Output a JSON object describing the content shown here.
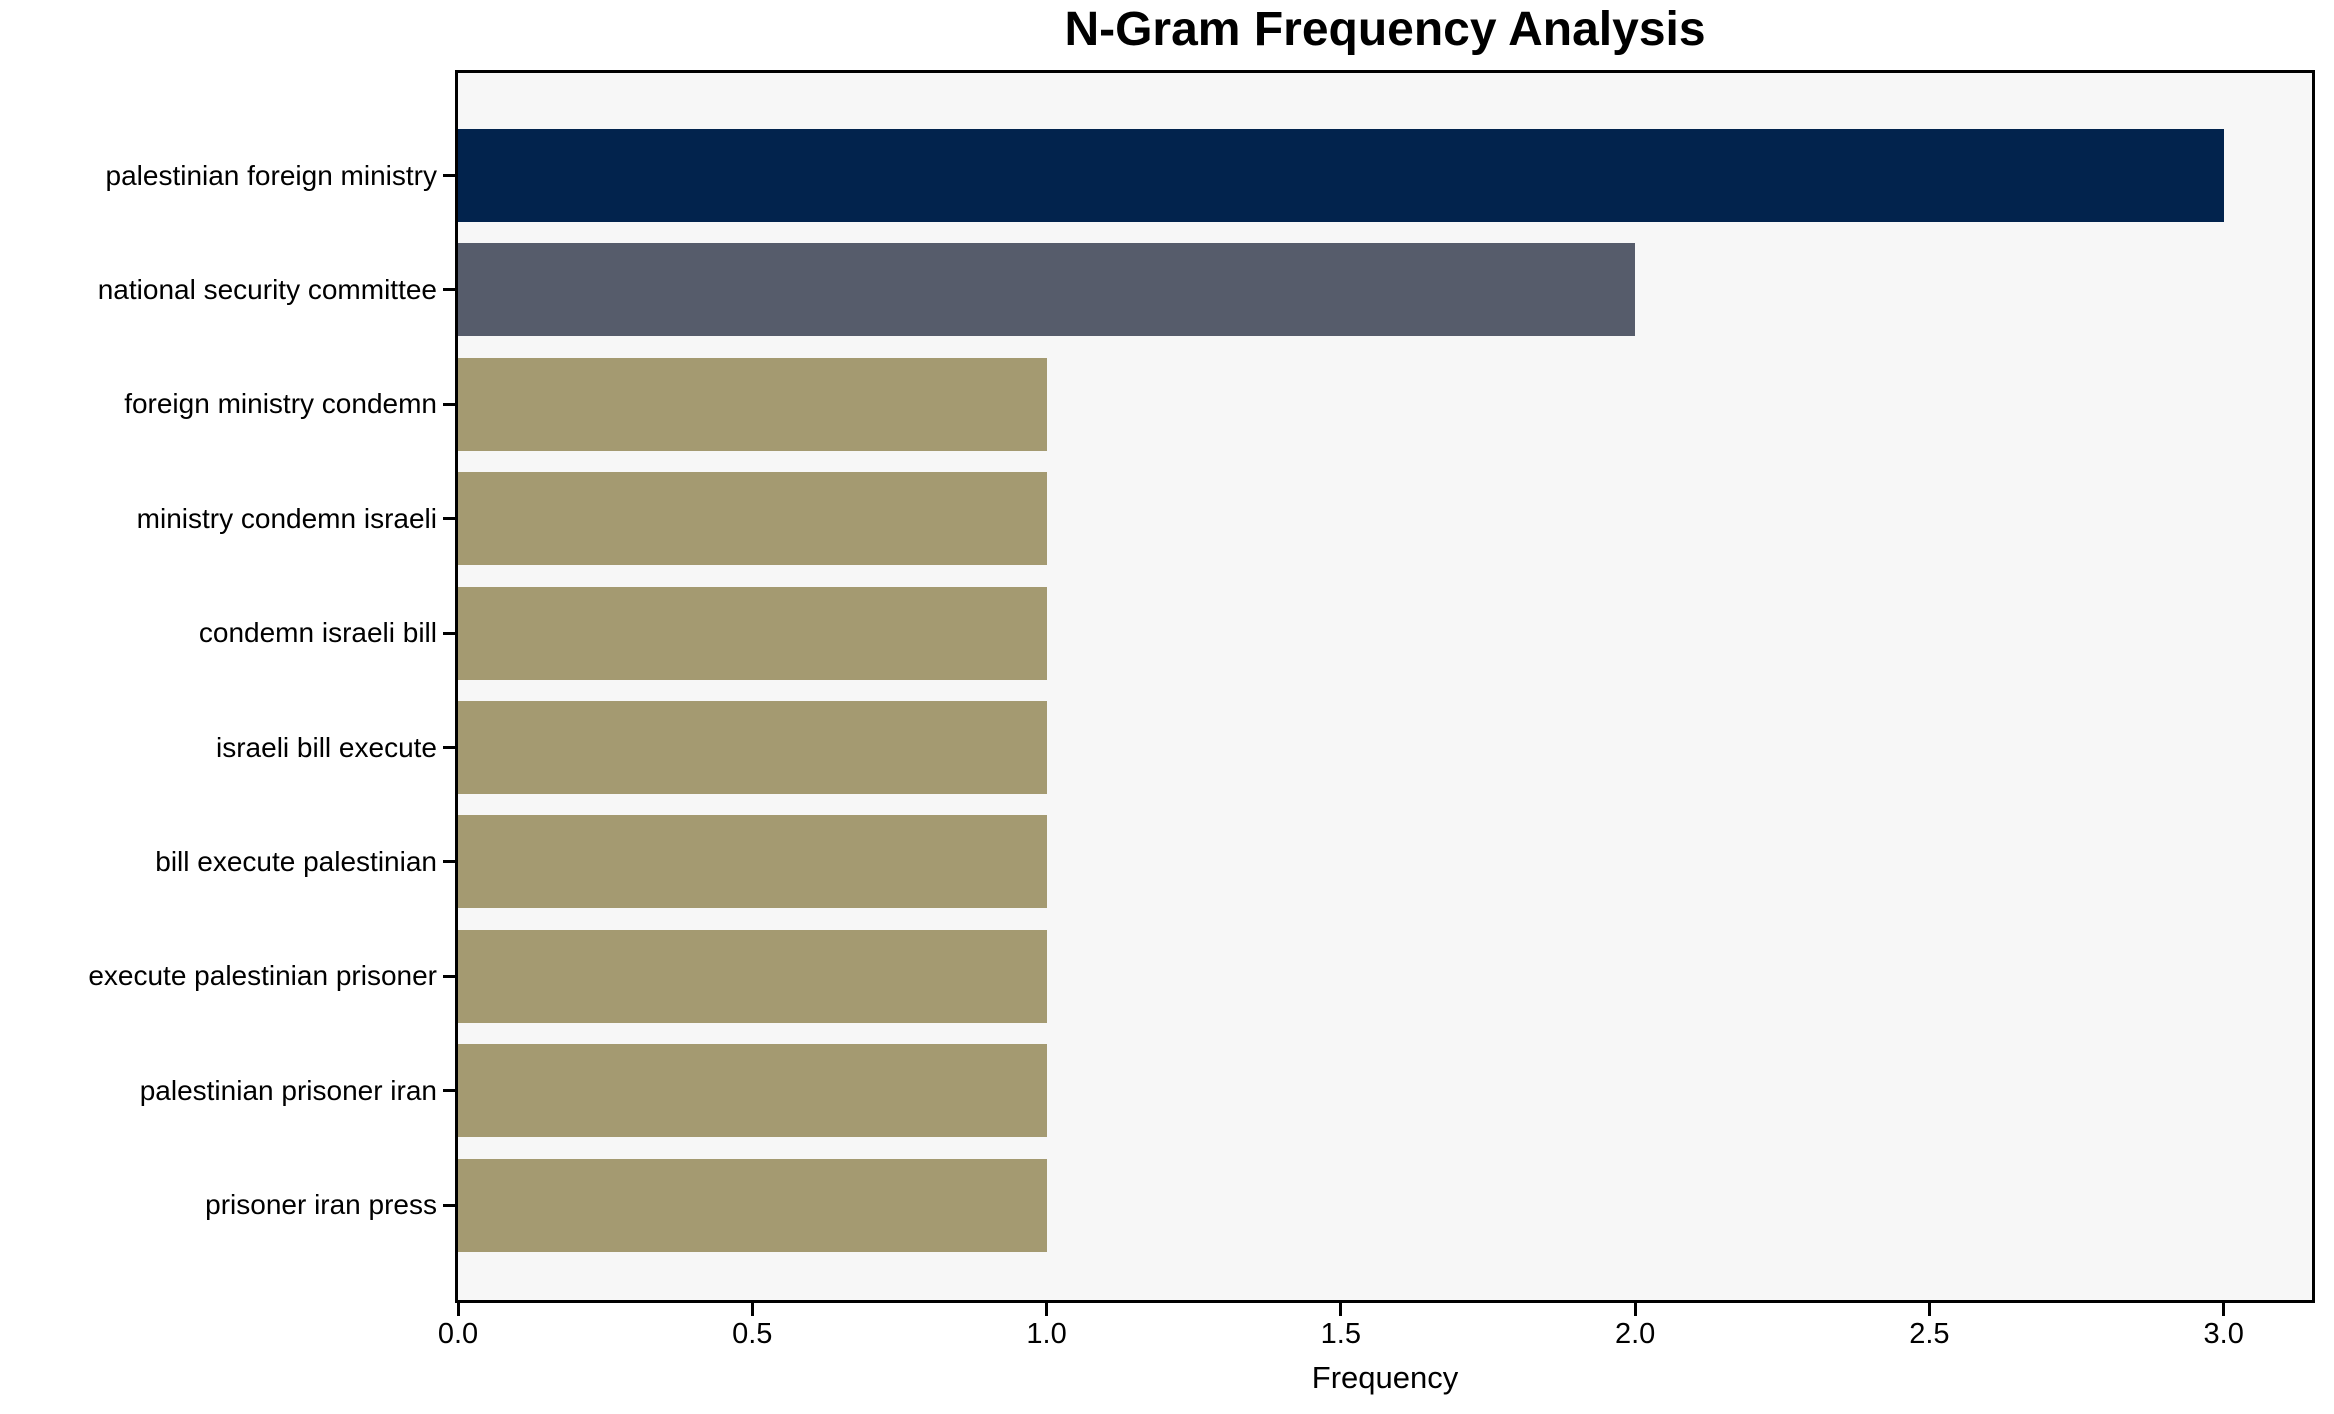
{
  "chart_data": {
    "type": "bar",
    "orientation": "horizontal",
    "title": "N-Gram Frequency Analysis",
    "xlabel": "Frequency",
    "ylabel": "",
    "categories": [
      "palestinian foreign ministry",
      "national security committee",
      "foreign ministry condemn",
      "ministry condemn israeli",
      "condemn israeli bill",
      "israeli bill execute",
      "bill execute palestinian",
      "execute palestinian prisoner",
      "palestinian prisoner iran",
      "prisoner iran press"
    ],
    "values": [
      3,
      2,
      1,
      1,
      1,
      1,
      1,
      1,
      1,
      1
    ],
    "bar_colors": [
      "#02234d",
      "#565c6b",
      "#a49a71",
      "#a49a71",
      "#a49a71",
      "#a49a71",
      "#a49a71",
      "#a49a71",
      "#a49a71",
      "#a49a71"
    ],
    "xlim": [
      0,
      3.15
    ],
    "xticks": [
      0.0,
      0.5,
      1.0,
      1.5,
      2.0,
      2.5,
      3.0
    ],
    "xtick_labels": [
      "0.0",
      "0.5",
      "1.0",
      "1.5",
      "2.0",
      "2.5",
      "3.0"
    ],
    "grid": false,
    "legend": null,
    "colors": {
      "plot_background": "#f7f7f7",
      "figure_background": "#ffffff",
      "spine": "#000000",
      "text": "#000000"
    }
  }
}
